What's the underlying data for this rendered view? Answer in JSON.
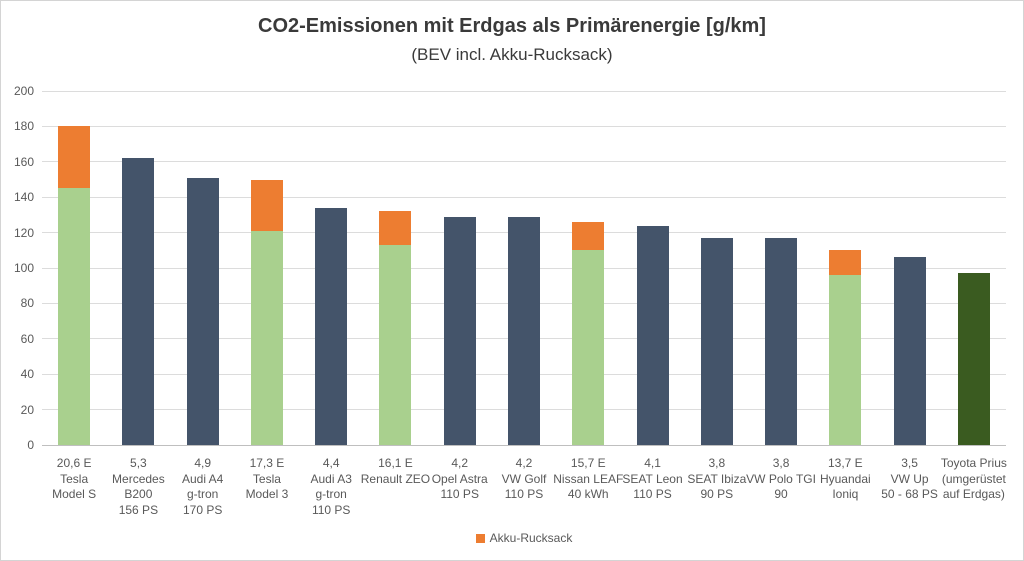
{
  "frame": {
    "background": "#ffffff",
    "border_color": "#d4d4d4"
  },
  "chart_data": {
    "type": "bar",
    "stacked": true,
    "title": "CO2-Emissionen mit Erdgas als Primärenergie [g/km]",
    "subtitle": "(BEV incl. Akku-Rucksack)",
    "xlabel": "",
    "ylabel": "",
    "ylim": [
      0,
      200
    ],
    "ytick_step": 20,
    "yticks": [
      0,
      20,
      40,
      60,
      80,
      100,
      120,
      140,
      160,
      180,
      200
    ],
    "grid": true,
    "colors": {
      "bev_base": "#a9d08e",
      "akku_rucksack": "#ed7d31",
      "erdgas_benzin": "#44546a",
      "prius_erdgas": "#3a5b20",
      "gridline": "#dcdcdc",
      "axis_line": "#bfbfbf",
      "axis_text": "#595959",
      "title_text": "#3a3a3a"
    },
    "legend": {
      "position": "bottom",
      "items": [
        {
          "label": "Akku-Rucksack",
          "color_key": "akku_rucksack"
        }
      ]
    },
    "bars": [
      {
        "label_lines": [
          "20,6 E",
          "Tesla",
          "Model S"
        ],
        "base_value": 145,
        "akku_value": 35,
        "color_key": "bev_base"
      },
      {
        "label_lines": [
          "5,3",
          "Mercedes",
          "B200",
          "156 PS"
        ],
        "base_value": 162,
        "akku_value": 0,
        "color_key": "erdgas_benzin"
      },
      {
        "label_lines": [
          "4,9",
          "Audi A4",
          "g-tron",
          "170 PS"
        ],
        "base_value": 151,
        "akku_value": 0,
        "color_key": "erdgas_benzin"
      },
      {
        "label_lines": [
          "17,3 E",
          "Tesla",
          "Model 3"
        ],
        "base_value": 121,
        "akku_value": 29,
        "color_key": "bev_base"
      },
      {
        "label_lines": [
          "4,4",
          "Audi A3",
          "g-tron",
          "110 PS"
        ],
        "base_value": 134,
        "akku_value": 0,
        "color_key": "erdgas_benzin"
      },
      {
        "label_lines": [
          "16,1 E",
          "Renault ZEO"
        ],
        "base_value": 113,
        "akku_value": 19,
        "color_key": "bev_base"
      },
      {
        "label_lines": [
          "4,2",
          "Opel Astra",
          "110 PS"
        ],
        "base_value": 129,
        "akku_value": 0,
        "color_key": "erdgas_benzin"
      },
      {
        "label_lines": [
          "4,2",
          "VW Golf",
          "110 PS"
        ],
        "base_value": 129,
        "akku_value": 0,
        "color_key": "erdgas_benzin"
      },
      {
        "label_lines": [
          "15,7 E",
          "Nissan LEAF",
          "40 kWh"
        ],
        "base_value": 110,
        "akku_value": 16,
        "color_key": "bev_base"
      },
      {
        "label_lines": [
          "4,1",
          "SEAT Leon",
          "110 PS"
        ],
        "base_value": 124,
        "akku_value": 0,
        "color_key": "erdgas_benzin"
      },
      {
        "label_lines": [
          "3,8",
          "SEAT Ibiza",
          "90 PS"
        ],
        "base_value": 117,
        "akku_value": 0,
        "color_key": "erdgas_benzin"
      },
      {
        "label_lines": [
          "3,8",
          "VW Polo TGI",
          "90"
        ],
        "base_value": 117,
        "akku_value": 0,
        "color_key": "erdgas_benzin"
      },
      {
        "label_lines": [
          "13,7 E",
          "Hyuandai",
          "Ioniq"
        ],
        "base_value": 96,
        "akku_value": 14,
        "color_key": "bev_base"
      },
      {
        "label_lines": [
          "3,5",
          "VW Up",
          "50 - 68 PS"
        ],
        "base_value": 106,
        "akku_value": 0,
        "color_key": "erdgas_benzin"
      },
      {
        "label_lines": [
          "Toyota Prius",
          "(umgerüstet",
          "auf Erdgas)"
        ],
        "base_value": 97,
        "akku_value": 0,
        "color_key": "prius_erdgas"
      }
    ]
  }
}
